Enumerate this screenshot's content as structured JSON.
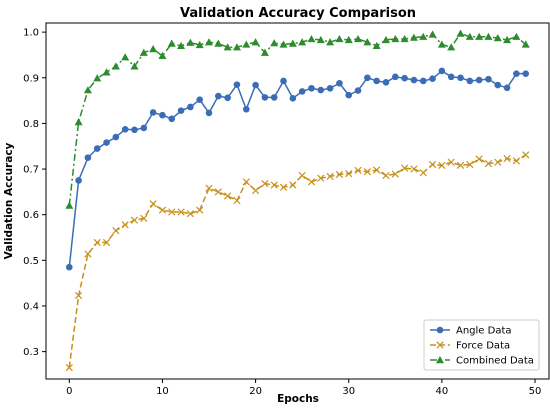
{
  "chart_data": {
    "type": "line",
    "title": "Validation Accuracy Comparison",
    "xlabel": "Epochs",
    "ylabel": "Validation Accuracy",
    "xlim": [
      -2.5,
      51.5
    ],
    "ylim": [
      0.24,
      1.02
    ],
    "xticks": [
      0,
      10,
      20,
      30,
      40,
      50
    ],
    "yticks": [
      0.3,
      0.4,
      0.5,
      0.6,
      0.7,
      0.8,
      0.9,
      1.0
    ],
    "ytick_labels": [
      "0.3",
      "0.4",
      "0.5",
      "0.6",
      "0.7",
      "0.8",
      "0.9",
      "1.0"
    ],
    "grid": false,
    "legend_position": "bottom-right",
    "x": [
      0,
      1,
      2,
      3,
      4,
      5,
      6,
      7,
      8,
      9,
      10,
      11,
      12,
      13,
      14,
      15,
      16,
      17,
      18,
      19,
      20,
      21,
      22,
      23,
      24,
      25,
      26,
      27,
      28,
      29,
      30,
      31,
      32,
      33,
      34,
      35,
      36,
      37,
      38,
      39,
      40,
      41,
      42,
      43,
      44,
      45,
      46,
      47,
      48,
      49
    ],
    "series": [
      {
        "name": "Angle Data",
        "color": "#3a6db5",
        "line_style": "solid",
        "marker": "circle",
        "values": [
          0.485,
          0.675,
          0.725,
          0.745,
          0.758,
          0.77,
          0.787,
          0.786,
          0.79,
          0.824,
          0.818,
          0.81,
          0.828,
          0.836,
          0.852,
          0.823,
          0.86,
          0.856,
          0.885,
          0.831,
          0.884,
          0.857,
          0.857,
          0.893,
          0.855,
          0.87,
          0.877,
          0.873,
          0.877,
          0.888,
          0.862,
          0.872,
          0.9,
          0.893,
          0.89,
          0.902,
          0.899,
          0.895,
          0.893,
          0.898,
          0.915,
          0.902,
          0.9,
          0.893,
          0.895,
          0.897,
          0.884,
          0.878,
          0.909,
          0.909
        ]
      },
      {
        "name": "Force Data",
        "color": "#c8901a",
        "line_style": "dashed",
        "marker": "x",
        "values": [
          0.265,
          0.423,
          0.514,
          0.539,
          0.539,
          0.565,
          0.578,
          0.588,
          0.592,
          0.624,
          0.61,
          0.606,
          0.606,
          0.602,
          0.61,
          0.658,
          0.65,
          0.641,
          0.631,
          0.672,
          0.653,
          0.668,
          0.665,
          0.66,
          0.665,
          0.686,
          0.672,
          0.68,
          0.684,
          0.688,
          0.69,
          0.697,
          0.694,
          0.698,
          0.686,
          0.689,
          0.702,
          0.7,
          0.692,
          0.71,
          0.708,
          0.715,
          0.708,
          0.71,
          0.722,
          0.712,
          0.715,
          0.723,
          0.718,
          0.731
        ]
      },
      {
        "name": "Combined Data",
        "color": "#2e8b2e",
        "line_style": "dashdot",
        "marker": "triangle",
        "values": [
          0.62,
          0.803,
          0.873,
          0.899,
          0.912,
          0.925,
          0.945,
          0.925,
          0.955,
          0.963,
          0.948,
          0.975,
          0.97,
          0.977,
          0.972,
          0.978,
          0.975,
          0.967,
          0.967,
          0.973,
          0.978,
          0.955,
          0.976,
          0.973,
          0.975,
          0.978,
          0.985,
          0.983,
          0.978,
          0.985,
          0.983,
          0.985,
          0.978,
          0.97,
          0.983,
          0.985,
          0.985,
          0.988,
          0.99,
          0.995,
          0.973,
          0.967,
          0.997,
          0.99,
          0.99,
          0.99,
          0.987,
          0.983,
          0.99,
          0.973
        ]
      }
    ]
  }
}
